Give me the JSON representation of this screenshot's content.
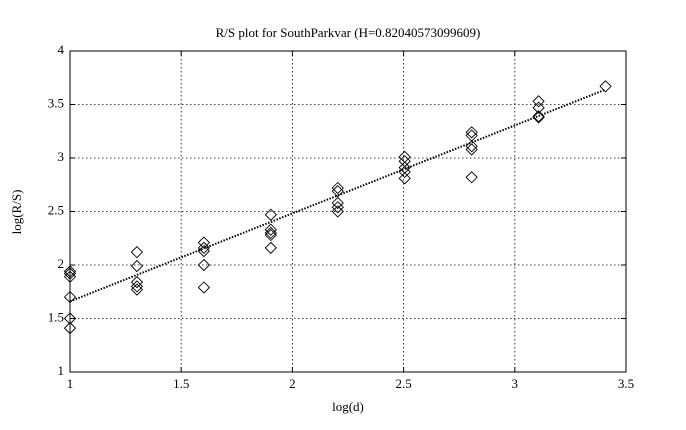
{
  "chart_data": {
    "type": "scatter",
    "title": "R/S plot for SouthParkvar (H=0.82040573099609)",
    "x_label": "log(d)",
    "y_label": "log(R/S)",
    "x": [
      1,
      1,
      1,
      1,
      1,
      1,
      1.301,
      1.301,
      1.301,
      1.301,
      1.301,
      1.602,
      1.602,
      1.602,
      1.602,
      1.602,
      1.903,
      1.903,
      1.903,
      1.903,
      1.903,
      2.204,
      2.204,
      2.204,
      2.204,
      2.204,
      2.505,
      2.505,
      2.505,
      2.505,
      2.505,
      2.806,
      2.806,
      2.806,
      2.806,
      2.806,
      3.107,
      3.107,
      3.107,
      3.107,
      3.408
    ],
    "values": [
      1.92,
      1.89,
      1.94,
      1.7,
      1.5,
      1.41,
      2.12,
      1.99,
      1.84,
      1.8,
      1.77,
      2.21,
      2.16,
      2.13,
      2.0,
      1.79,
      2.47,
      2.33,
      2.3,
      2.28,
      2.16,
      2.72,
      2.69,
      2.58,
      2.54,
      2.5,
      3.01,
      2.97,
      2.91,
      2.87,
      2.81,
      3.24,
      3.21,
      3.11,
      3.08,
      2.82,
      3.53,
      3.47,
      3.39,
      3.38,
      3.67
    ],
    "color": "#000000",
    "fit": {
      "x": [
        1,
        3.408
      ],
      "y": [
        1.66,
        3.64
      ]
    },
    "xlim": [
      1,
      3.5
    ],
    "xticks": [
      1,
      1.5,
      2,
      2.5,
      3,
      3.5
    ],
    "ylim": [
      1,
      4
    ],
    "yticks": [
      1,
      1.5,
      2,
      2.5,
      3,
      3.5,
      4
    ],
    "grid": true
  }
}
